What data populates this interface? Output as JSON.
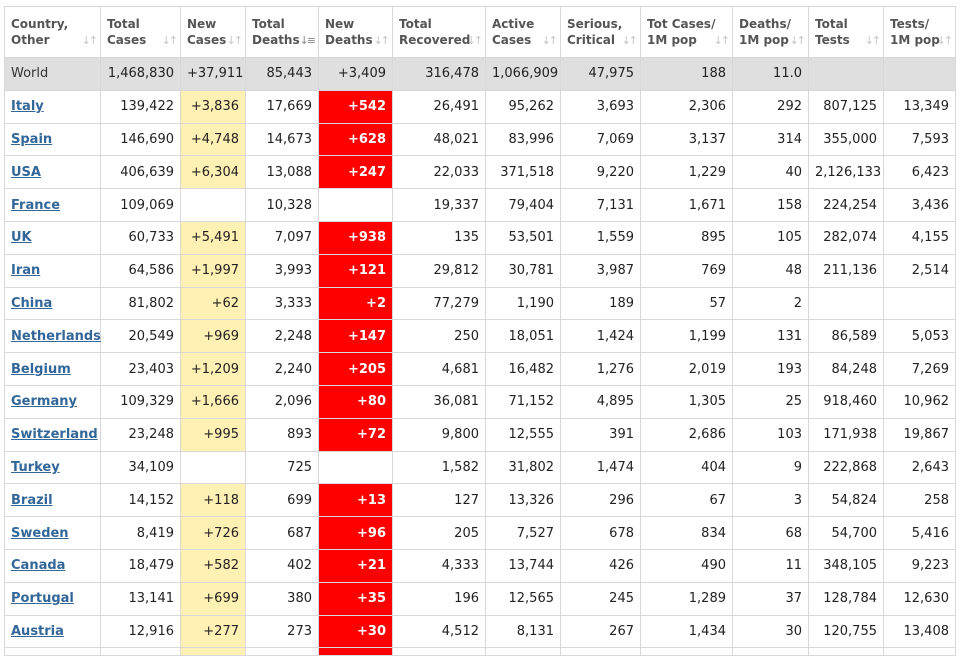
{
  "colors": {
    "new_cases_bg": "#fff0b3",
    "new_deaths_bg": "#ff0000",
    "world_row_bg": "#dfdfdf",
    "link": "#336699"
  },
  "headers": [
    {
      "l1": "Country,",
      "l2": "Other",
      "icon": "sort-icon"
    },
    {
      "l1": "Total",
      "l2": "Cases",
      "icon": "sort-icon"
    },
    {
      "l1": "New",
      "l2": "Cases",
      "icon": "sort-icon"
    },
    {
      "l1": "Total",
      "l2": "Deaths",
      "icon": "sort-descending-icon"
    },
    {
      "l1": "New",
      "l2": "Deaths",
      "icon": "sort-icon"
    },
    {
      "l1": "Total",
      "l2": "Recovered",
      "icon": "sort-icon"
    },
    {
      "l1": "Active",
      "l2": "Cases",
      "icon": "sort-icon"
    },
    {
      "l1": "Serious,",
      "l2": "Critical",
      "icon": "sort-icon"
    },
    {
      "l1": "Tot Cases/",
      "l2": "1M pop",
      "icon": "sort-icon"
    },
    {
      "l1": "Deaths/",
      "l2": "1M pop",
      "icon": "sort-icon"
    },
    {
      "l1": "Total",
      "l2": "Tests",
      "icon": "sort-icon"
    },
    {
      "l1": "Tests/",
      "l2": "1M pop",
      "icon": "sort-icon"
    }
  ],
  "world": [
    "World",
    "1,468,830",
    "+37,911",
    "85,443",
    "+3,409",
    "316,478",
    "1,066,909",
    "47,975",
    "188",
    "11.0",
    "",
    ""
  ],
  "rows": [
    [
      "Italy",
      "139,422",
      "+3,836",
      "17,669",
      "+542",
      "26,491",
      "95,262",
      "3,693",
      "2,306",
      "292",
      "807,125",
      "13,349"
    ],
    [
      "Spain",
      "146,690",
      "+4,748",
      "14,673",
      "+628",
      "48,021",
      "83,996",
      "7,069",
      "3,137",
      "314",
      "355,000",
      "7,593"
    ],
    [
      "USA",
      "406,639",
      "+6,304",
      "13,088",
      "+247",
      "22,033",
      "371,518",
      "9,220",
      "1,229",
      "40",
      "2,126,133",
      "6,423"
    ],
    [
      "France",
      "109,069",
      "",
      "10,328",
      "",
      "19,337",
      "79,404",
      "7,131",
      "1,671",
      "158",
      "224,254",
      "3,436"
    ],
    [
      "UK",
      "60,733",
      "+5,491",
      "7,097",
      "+938",
      "135",
      "53,501",
      "1,559",
      "895",
      "105",
      "282,074",
      "4,155"
    ],
    [
      "Iran",
      "64,586",
      "+1,997",
      "3,993",
      "+121",
      "29,812",
      "30,781",
      "3,987",
      "769",
      "48",
      "211,136",
      "2,514"
    ],
    [
      "China",
      "81,802",
      "+62",
      "3,333",
      "+2",
      "77,279",
      "1,190",
      "189",
      "57",
      "2",
      "",
      ""
    ],
    [
      "Netherlands",
      "20,549",
      "+969",
      "2,248",
      "+147",
      "250",
      "18,051",
      "1,424",
      "1,199",
      "131",
      "86,589",
      "5,053"
    ],
    [
      "Belgium",
      "23,403",
      "+1,209",
      "2,240",
      "+205",
      "4,681",
      "16,482",
      "1,276",
      "2,019",
      "193",
      "84,248",
      "7,269"
    ],
    [
      "Germany",
      "109,329",
      "+1,666",
      "2,096",
      "+80",
      "36,081",
      "71,152",
      "4,895",
      "1,305",
      "25",
      "918,460",
      "10,962"
    ],
    [
      "Switzerland",
      "23,248",
      "+995",
      "893",
      "+72",
      "9,800",
      "12,555",
      "391",
      "2,686",
      "103",
      "171,938",
      "19,867"
    ],
    [
      "Turkey",
      "34,109",
      "",
      "725",
      "",
      "1,582",
      "31,802",
      "1,474",
      "404",
      "9",
      "222,868",
      "2,643"
    ],
    [
      "Brazil",
      "14,152",
      "+118",
      "699",
      "+13",
      "127",
      "13,326",
      "296",
      "67",
      "3",
      "54,824",
      "258"
    ],
    [
      "Sweden",
      "8,419",
      "+726",
      "687",
      "+96",
      "205",
      "7,527",
      "678",
      "834",
      "68",
      "54,700",
      "5,416"
    ],
    [
      "Canada",
      "18,479",
      "+582",
      "402",
      "+21",
      "4,333",
      "13,744",
      "426",
      "490",
      "11",
      "348,105",
      "9,223"
    ],
    [
      "Portugal",
      "13,141",
      "+699",
      "380",
      "+35",
      "196",
      "12,565",
      "245",
      "1,289",
      "37",
      "128,784",
      "12,630"
    ],
    [
      "Austria",
      "12,916",
      "+277",
      "273",
      "+30",
      "4,512",
      "8,131",
      "267",
      "1,434",
      "30",
      "120,755",
      "13,408"
    ]
  ]
}
